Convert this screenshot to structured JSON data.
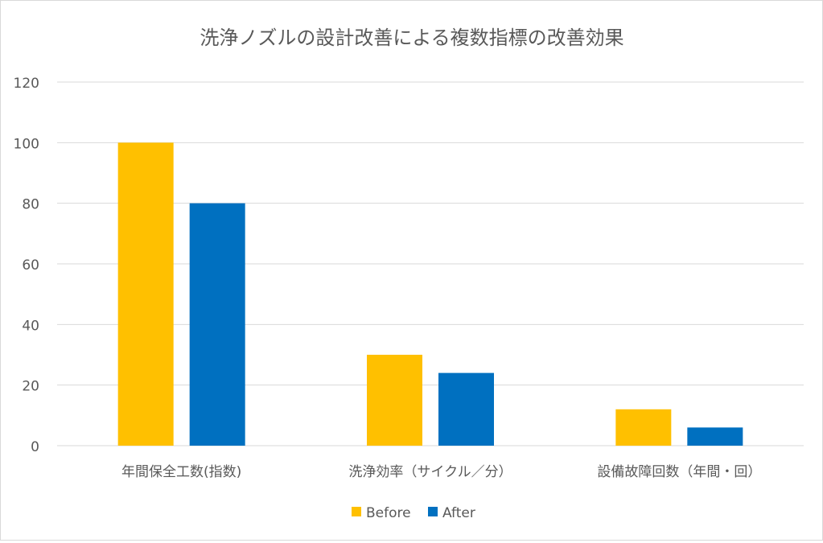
{
  "chart_data": {
    "type": "bar",
    "title": "洗浄ノズルの設計改善による複数指標の改善効果",
    "categories": [
      "年間保全工数(指数)",
      "洗浄効率（サイクル／分）",
      "設備故障回数（年間・回）"
    ],
    "series": [
      {
        "name": "Before",
        "values": [
          100,
          30,
          12
        ],
        "color": "#FFC000"
      },
      {
        "name": "After",
        "values": [
          80,
          24,
          6
        ],
        "color": "#0070C0"
      }
    ],
    "yticks": [
      0,
      20,
      40,
      60,
      80,
      100,
      120
    ],
    "ylim": [
      0,
      120
    ],
    "grid": true,
    "legend_position": "bottom"
  }
}
